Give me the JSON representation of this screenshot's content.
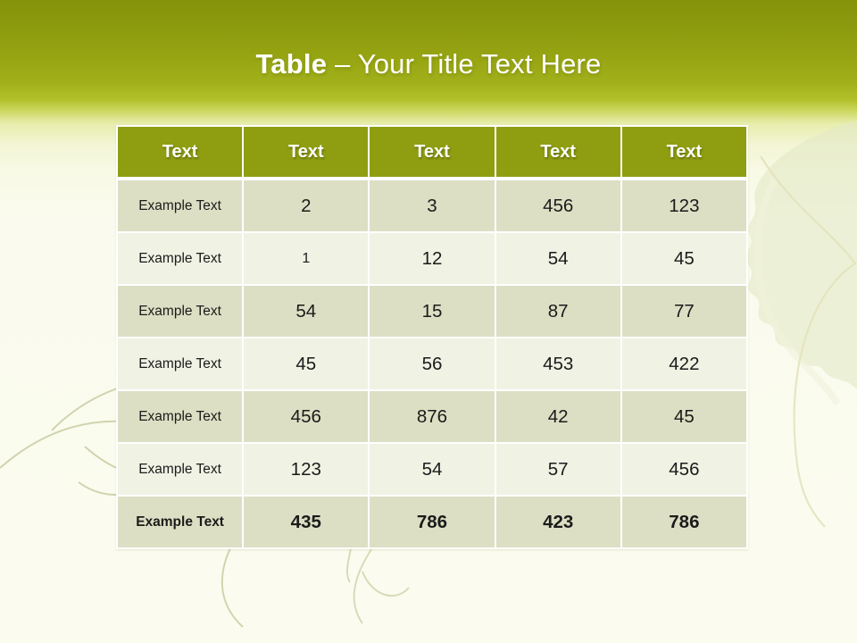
{
  "slide": {
    "title": {
      "prefix": "Table",
      "separator": "–",
      "text": "Your Title Text Here"
    },
    "colors": {
      "banner_top": "#85930a",
      "banner_bottom": "#b2c02a",
      "background": "#fbfcef",
      "header_bg": "#8f9e11",
      "header_text": "#ffffff",
      "row_odd": "#dcdfc3",
      "row_even": "#f0f2e4",
      "cell_text": "#1b1b1b",
      "gridline": "#ffffff"
    },
    "table": {
      "headers": [
        "Text",
        "Text",
        "Text",
        "Text",
        "Text"
      ],
      "rows": [
        {
          "label": "Example Text",
          "values": [
            "2",
            "3",
            "456",
            "123"
          ],
          "bold": false
        },
        {
          "label": "Example Text",
          "values": [
            "1",
            "12",
            "54",
            "45"
          ],
          "bold": false
        },
        {
          "label": "Example Text",
          "values": [
            "54",
            "15",
            "87",
            "77"
          ],
          "bold": false
        },
        {
          "label": "Example Text",
          "values": [
            "45",
            "56",
            "453",
            "422"
          ],
          "bold": false
        },
        {
          "label": "Example Text",
          "values": [
            "456",
            "876",
            "42",
            "45"
          ],
          "bold": false
        },
        {
          "label": "Example Text",
          "values": [
            "123",
            "54",
            "57",
            "456"
          ],
          "bold": false
        },
        {
          "label": "Example Text",
          "values": [
            "435",
            "786",
            "423",
            "786"
          ],
          "bold": true
        }
      ]
    },
    "decorations": [
      "leaf-watermark-right",
      "vine-tendrils-bottom-left",
      "vine-tendril-bottom-center"
    ]
  }
}
